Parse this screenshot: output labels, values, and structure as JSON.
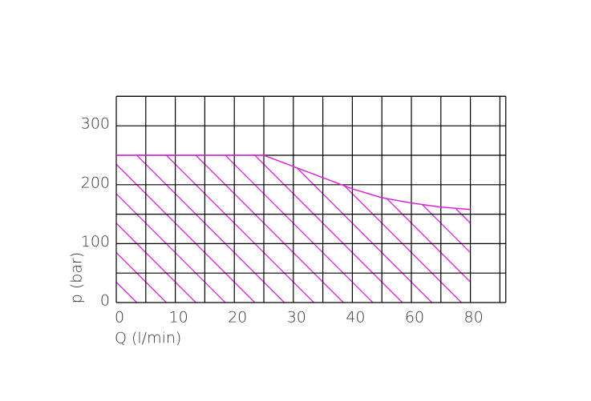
{
  "chart_data": {
    "type": "line",
    "x_label": "Q (l/min)",
    "y_label": "p (bar)",
    "x": [
      0,
      25,
      30,
      35,
      40,
      50,
      60,
      70,
      80
    ],
    "series": [
      {
        "color": "#e020e0",
        "values": [
          250,
          250,
          231,
          212,
          193,
          178,
          169,
          162,
          158
        ]
      }
    ],
    "xlim": [
      0,
      92
    ],
    "xticks": [
      0,
      10,
      20,
      30,
      40,
      60,
      80
    ],
    "ylim": [
      0,
      350
    ],
    "yticks": [
      0,
      100,
      200,
      300
    ],
    "grid": true,
    "hatch": true
  }
}
